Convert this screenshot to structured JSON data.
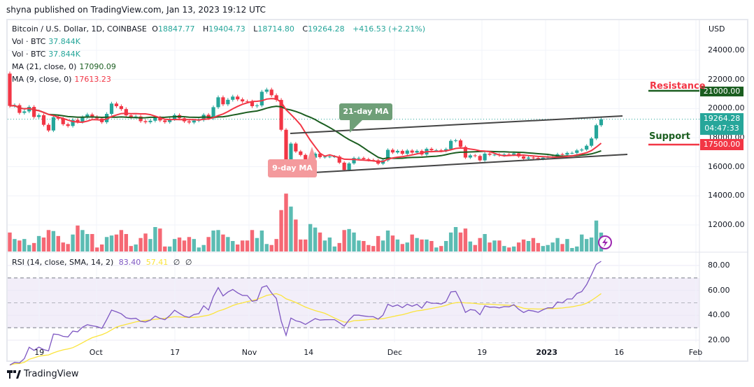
{
  "published": "shyna published on TradingView.com, Jan 13, 2023 19:12 UTC",
  "header": {
    "symbol": "Bitcoin / U.S. Dollar, 1D, COINBASE",
    "o_label": "O",
    "o": "18847.77",
    "h_label": "H",
    "h": "19404.73",
    "l_label": "L",
    "l": "18714.80",
    "c_label": "C",
    "c": "19264.28",
    "change": "+416.53 (+2.21%)"
  },
  "indicators": {
    "vol1_label": "Vol · BTC",
    "vol1_value": "37.844K",
    "vol2_label": "Vol · BTC",
    "vol2_value": "37.844K",
    "ma21_label": "MA (21, close, 0)",
    "ma21_value": "17090.09",
    "ma9_label": "MA (9, close, 0)",
    "ma9_value": "17613.23",
    "rsi_label": "RSI (14, close, SMA, 14, 2)",
    "rsi_value": "83.40",
    "rsi_sma_value": "57.41",
    "rsi_extra1": "∅",
    "rsi_extra2": "∅"
  },
  "price_axis": {
    "currency": "USD",
    "labels": [
      "24000.00",
      "22000.00",
      "20000.00",
      "18000.00",
      "16000.00",
      "14000.00",
      "12000.00"
    ],
    "current_price": "19264.28",
    "countdown": "04:47:33",
    "resistance_tag": "21000.00",
    "support_tag": "17500.00"
  },
  "rsi_axis": {
    "labels": [
      "80.00",
      "60.00",
      "40.00",
      "20.00"
    ]
  },
  "time_axis": {
    "labels": [
      "19",
      "Oct",
      "17",
      "Nov",
      "14",
      "Dec",
      "19",
      "2023",
      "16",
      "Feb"
    ]
  },
  "annotations": {
    "ma21_callout": "21-day MA",
    "ma9_callout": "9-day MA",
    "resistance": "Resistance",
    "support": "Support"
  },
  "colors": {
    "up": "#26a69a",
    "down": "#f23645",
    "ma21": "#1b5e20",
    "ma9": "#f23645",
    "rsi": "#7e57c2",
    "rsi_sma": "#fbe43b",
    "resistance": "#1b5e20",
    "support": "#f23645"
  },
  "footer": {
    "brand": "TradingView"
  },
  "chart_data": {
    "type": "candlestick",
    "interval": "1D",
    "first_open": 22400,
    "close": [
      20180,
      20230,
      19700,
      19800,
      20110,
      19420,
      19540,
      18880,
      18490,
      19400,
      19300,
      18920,
      18800,
      19220,
      19080,
      19410,
      19590,
      19420,
      19310,
      19060,
      19630,
      20340,
      20160,
      19960,
      19530,
      19420,
      19450,
      19130,
      19060,
      19160,
      19380,
      19180,
      19070,
      19270,
      19550,
      19330,
      19120,
      19040,
      19170,
      19210,
      19570,
      19330,
      20090,
      20770,
      20290,
      20600,
      20820,
      20630,
      20490,
      20480,
      20160,
      20210,
      21150,
      21300,
      20910,
      20590,
      18540,
      15880,
      17590,
      17050,
      16810,
      16330,
      16620,
      16900,
      16660,
      16690,
      16700,
      16700,
      16280,
      15780,
      16230,
      16600,
      16600,
      16520,
      16460,
      16440,
      16210,
      16440,
      17160,
      16980,
      17090,
      16890,
      17110,
      16970,
      17090,
      16840,
      17230,
      17130,
      17130,
      17090,
      17210,
      17780,
      17810,
      17360,
      16630,
      16780,
      16740,
      16440,
      16900,
      16820,
      16830,
      16780,
      16840,
      16830,
      16920,
      16710,
      16550,
      16630,
      16600,
      16540,
      16620,
      16680,
      16680,
      16860,
      16830,
      16950,
      16950,
      17120,
      17180,
      17440,
      17940,
      18850,
      19264.28
    ],
    "volume_k": [
      38,
      25,
      22,
      25,
      13,
      17,
      31,
      28,
      43,
      41,
      31,
      18,
      15,
      34,
      52,
      43,
      35,
      35,
      8,
      14,
      29,
      32,
      34,
      43,
      35,
      11,
      14,
      27,
      36,
      25,
      49,
      46,
      10,
      10,
      25,
      28,
      22,
      29,
      25,
      8,
      13,
      29,
      42,
      43,
      34,
      29,
      21,
      14,
      22,
      22,
      43,
      27,
      42,
      15,
      13,
      25,
      83,
      116,
      90,
      64,
      24,
      24,
      55,
      48,
      38,
      22,
      28,
      10,
      17,
      43,
      45,
      38,
      22,
      21,
      13,
      11,
      31,
      22,
      42,
      32,
      24,
      15,
      18,
      34,
      27,
      24,
      24,
      21,
      8,
      11,
      21,
      38,
      49,
      38,
      46,
      20,
      13,
      27,
      35,
      18,
      22,
      22,
      11,
      8,
      10,
      18,
      24,
      21,
      27,
      17,
      11,
      13,
      18,
      27,
      15,
      25,
      7,
      10,
      34,
      25,
      28,
      62,
      37.844
    ],
    "price_range": [
      11000,
      25000
    ],
    "rsi_range": [
      20,
      85
    ],
    "rsi_bands": [
      30,
      50,
      70
    ],
    "levels": {
      "resistance": 21000,
      "support": 17500
    }
  }
}
